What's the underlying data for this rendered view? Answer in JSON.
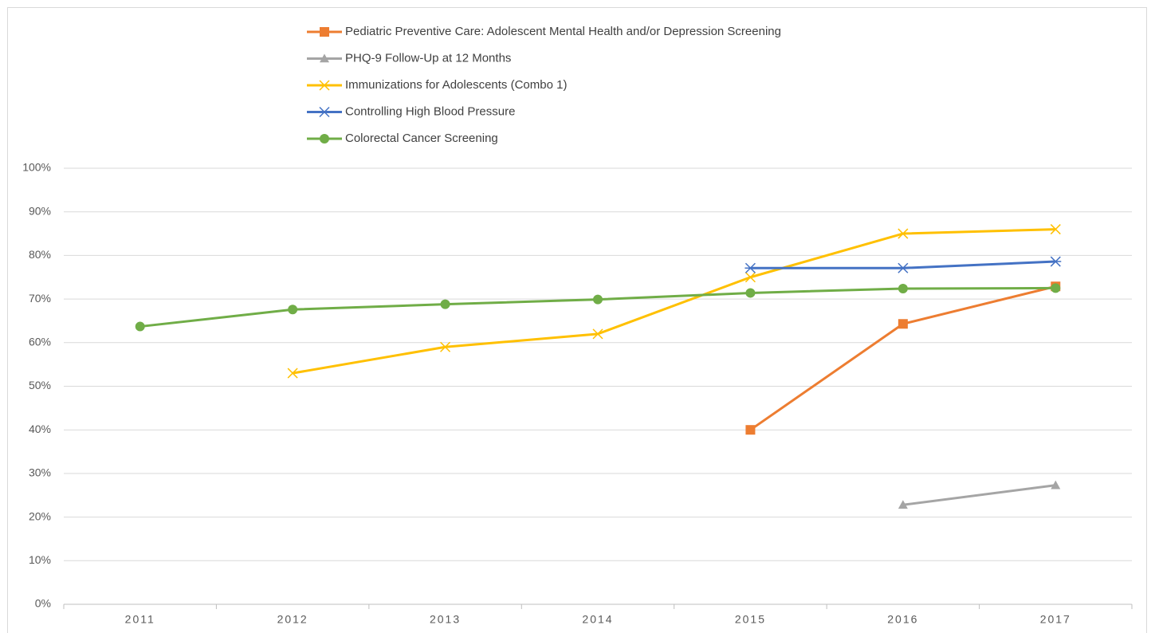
{
  "chart_data": {
    "type": "line",
    "categories": [
      "2011",
      "2012",
      "2013",
      "2014",
      "2015",
      "2016",
      "2017"
    ],
    "series": [
      {
        "name": "Pediatric Preventive Care: Adolescent Mental Health and/or Depression Screening",
        "color": "#ed7d31",
        "marker": "square",
        "values": [
          null,
          null,
          null,
          null,
          40,
          64.3,
          72.9
        ]
      },
      {
        "name": "PHQ-9 Follow-Up at 12 Months",
        "color": "#a5a5a5",
        "marker": "triangle",
        "values": [
          null,
          null,
          null,
          null,
          null,
          22.8,
          27.3
        ]
      },
      {
        "name": "Immunizations for Adolescents (Combo 1)",
        "color": "#ffc000",
        "marker": "x",
        "values": [
          null,
          53,
          59,
          62,
          75,
          85,
          86
        ]
      },
      {
        "name": "Controlling High Blood Pressure",
        "color": "#4472c4",
        "marker": "star",
        "values": [
          null,
          null,
          null,
          null,
          77.1,
          77.1,
          78.6
        ]
      },
      {
        "name": "Colorectal Cancer Screening",
        "color": "#70ad47",
        "marker": "circle",
        "values": [
          63.7,
          67.6,
          68.8,
          69.9,
          71.4,
          72.4,
          72.5
        ]
      }
    ],
    "ylim": [
      0,
      100
    ],
    "yticks": [
      {
        "value": 0,
        "label": "0%"
      },
      {
        "value": 10,
        "label": "10%"
      },
      {
        "value": 20,
        "label": "20%"
      },
      {
        "value": 30,
        "label": "30%"
      },
      {
        "value": 40,
        "label": "40%"
      },
      {
        "value": 50,
        "label": "50%"
      },
      {
        "value": 60,
        "label": "60%"
      },
      {
        "value": 70,
        "label": "70%"
      },
      {
        "value": 80,
        "label": "80%"
      },
      {
        "value": 90,
        "label": "90%"
      },
      {
        "value": 100,
        "label": "100%"
      }
    ],
    "grid": true,
    "legend": "top"
  }
}
